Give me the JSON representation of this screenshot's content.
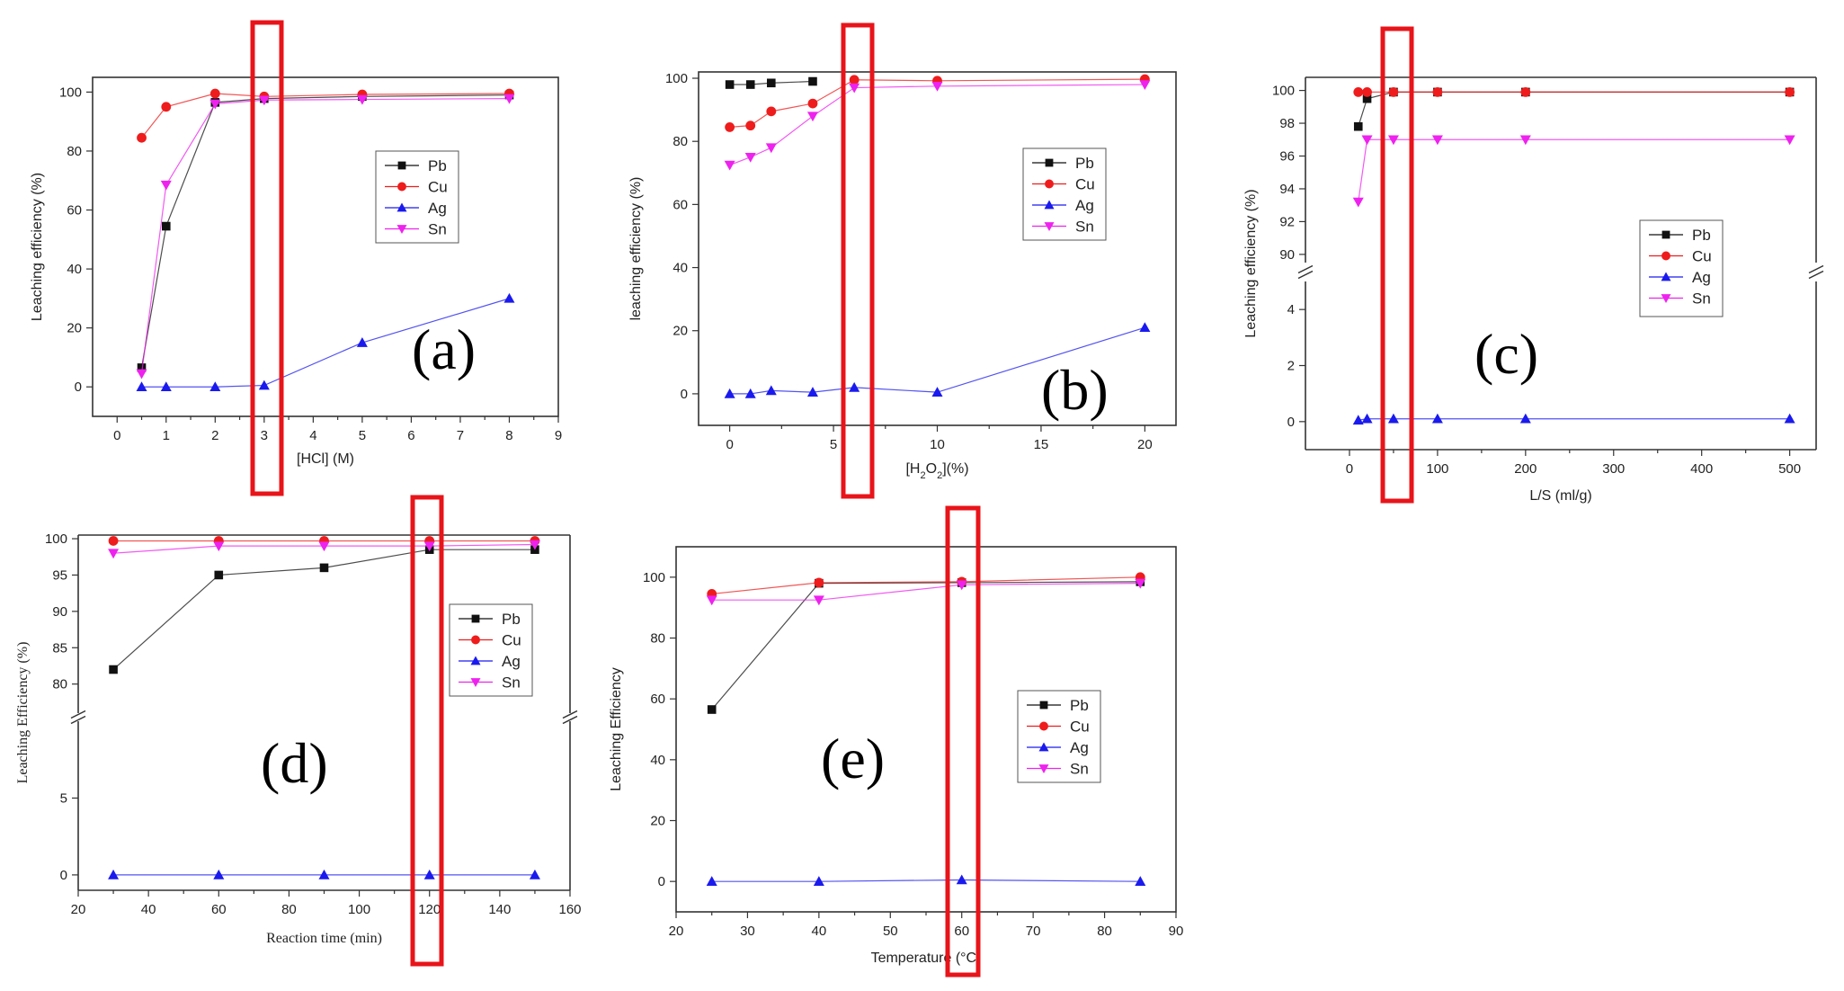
{
  "colors": {
    "Pb": "#111111",
    "Cu": "#ee1c1c",
    "Ag": "#1a1aee",
    "Sn": "#ee22ee",
    "highlight": "#e8141a"
  },
  "chart_data": [
    {
      "id": "a",
      "type": "line",
      "panel_label": "(a)",
      "xlabel": "[HCl] (M)",
      "ylabel": "Leaching efficiency (%)",
      "xlim": [
        -0.5,
        9
      ],
      "ylim": [
        -10,
        105
      ],
      "xticks": [
        0,
        1,
        2,
        3,
        4,
        5,
        6,
        7,
        8,
        9
      ],
      "yticks": [
        0,
        20,
        40,
        60,
        80,
        100
      ],
      "legend": [
        "Pb",
        "Cu",
        "Ag",
        "Sn"
      ],
      "highlight_x": 3,
      "series": [
        {
          "name": "Pb",
          "x": [
            0.5,
            1,
            2,
            3,
            5,
            8
          ],
          "values": [
            6.5,
            54.5,
            96.5,
            97.8,
            98.5,
            99
          ]
        },
        {
          "name": "Cu",
          "x": [
            0.5,
            1,
            2,
            3,
            5,
            8
          ],
          "values": [
            84.5,
            95,
            99.5,
            98.5,
            99.2,
            99.5
          ]
        },
        {
          "name": "Ag",
          "x": [
            0.5,
            1,
            2,
            3,
            5,
            8
          ],
          "values": [
            0,
            0,
            0,
            0.5,
            15,
            30
          ]
        },
        {
          "name": "Sn",
          "x": [
            0.5,
            1,
            2,
            3,
            5,
            8
          ],
          "values": [
            4.5,
            68.5,
            96,
            97.3,
            97.5,
            97.8
          ]
        }
      ]
    },
    {
      "id": "b",
      "type": "line",
      "panel_label": "(b)",
      "xlabel": "[H2O2](%)",
      "xlabel_parts": [
        "[H",
        "2",
        "O",
        "2",
        "](%)"
      ],
      "ylabel": "leaching efficiency (%)",
      "xlim": [
        -1.5,
        21.5
      ],
      "ylim": [
        -10,
        102
      ],
      "xticks": [
        0,
        5,
        10,
        15,
        20
      ],
      "yticks": [
        0,
        20,
        40,
        60,
        80,
        100
      ],
      "legend": [
        "Pb",
        "Cu",
        "Ag",
        "Sn"
      ],
      "highlight_x": 6,
      "series": [
        {
          "name": "Pb",
          "x": [
            0,
            1,
            2,
            4
          ],
          "values": [
            98,
            98,
            98.5,
            99
          ]
        },
        {
          "name": "Cu",
          "x": [
            0,
            1,
            2,
            4,
            6,
            10,
            20
          ],
          "values": [
            84.5,
            85,
            89.5,
            92,
            99.5,
            99.2,
            99.7
          ]
        },
        {
          "name": "Ag",
          "x": [
            0,
            1,
            2,
            4,
            6,
            10,
            20
          ],
          "values": [
            0,
            0,
            1,
            0.5,
            2,
            0.5,
            21
          ]
        },
        {
          "name": "Sn",
          "x": [
            0,
            1,
            2,
            4,
            6,
            10,
            20
          ],
          "values": [
            72.5,
            75,
            78,
            88,
            97,
            97.5,
            98
          ]
        }
      ]
    },
    {
      "id": "c",
      "type": "line",
      "panel_label": "(c)",
      "xlabel": "L/S (ml/g)",
      "ylabel": "Leaching efficiency (%)",
      "xlim": [
        -50,
        530
      ],
      "xticks": [
        0,
        100,
        200,
        300,
        400,
        500
      ],
      "y_broken": true,
      "ylim_lower": [
        -1,
        5
      ],
      "yticks_lower": [
        0,
        2,
        4
      ],
      "ylim_upper": [
        89.5,
        100.8
      ],
      "yticks_upper": [
        90,
        92,
        94,
        96,
        98,
        100
      ],
      "legend": [
        "Pb",
        "Cu",
        "Ag",
        "Sn"
      ],
      "highlight_x": 50,
      "series": [
        {
          "name": "Pb",
          "x": [
            10,
            20,
            50,
            100,
            200,
            500
          ],
          "values": [
            97.8,
            99.5,
            99.9,
            99.9,
            99.9,
            99.9
          ]
        },
        {
          "name": "Cu",
          "x": [
            10,
            20,
            50,
            100,
            200,
            500
          ],
          "values": [
            99.9,
            99.9,
            99.9,
            99.9,
            99.9,
            99.9
          ]
        },
        {
          "name": "Ag",
          "x": [
            10,
            20,
            50,
            100,
            200,
            500
          ],
          "values": [
            0.05,
            0.1,
            0.1,
            0.1,
            0.1,
            0.1
          ]
        },
        {
          "name": "Sn",
          "x": [
            10,
            20,
            50,
            100,
            200,
            500
          ],
          "values": [
            93.2,
            97,
            97,
            97,
            97,
            97
          ]
        }
      ]
    },
    {
      "id": "d",
      "type": "line",
      "panel_label": "(d)",
      "xlabel": "Reaction time (min)",
      "ylabel": "Leaching Efficiency (%)",
      "xlim": [
        20,
        160
      ],
      "xticks": [
        20,
        40,
        60,
        80,
        100,
        120,
        140,
        160
      ],
      "y_broken": true,
      "ylim_lower": [
        -1,
        10
      ],
      "yticks_lower": [
        0,
        5
      ],
      "ylim_upper": [
        76,
        100.5
      ],
      "yticks_upper": [
        80,
        85,
        90,
        95,
        100
      ],
      "legend": [
        "Pb",
        "Cu",
        "Ag",
        "Sn"
      ],
      "highlight_x": 120,
      "series": [
        {
          "name": "Pb",
          "x": [
            30,
            60,
            90,
            120,
            150
          ],
          "values": [
            82,
            95,
            96,
            98.5,
            98.5
          ]
        },
        {
          "name": "Cu",
          "x": [
            30,
            60,
            90,
            120,
            150
          ],
          "values": [
            99.7,
            99.7,
            99.7,
            99.7,
            99.7
          ]
        },
        {
          "name": "Ag",
          "x": [
            30,
            60,
            90,
            120,
            150
          ],
          "values": [
            0,
            0,
            0,
            0,
            0
          ]
        },
        {
          "name": "Sn",
          "x": [
            30,
            60,
            90,
            120,
            150
          ],
          "values": [
            98,
            99,
            99,
            99,
            99.2
          ]
        }
      ]
    },
    {
      "id": "e",
      "type": "line",
      "panel_label": "(e)",
      "xlabel": "Temperature (°C)",
      "ylabel": "Leaching Efficiency",
      "xlim": [
        20,
        90
      ],
      "ylim": [
        -10,
        110
      ],
      "xticks": [
        20,
        30,
        40,
        50,
        60,
        70,
        80,
        90
      ],
      "yticks": [
        0,
        20,
        40,
        60,
        80,
        100
      ],
      "legend": [
        "Pb",
        "Cu",
        "Ag",
        "Sn"
      ],
      "highlight_x": 60,
      "series": [
        {
          "name": "Pb",
          "x": [
            25,
            40,
            60,
            85
          ],
          "values": [
            56.5,
            98,
            98.2,
            98.5
          ]
        },
        {
          "name": "Cu",
          "x": [
            25,
            40,
            60,
            85
          ],
          "values": [
            94.5,
            98.2,
            98.5,
            100
          ]
        },
        {
          "name": "Ag",
          "x": [
            25,
            40,
            60,
            85
          ],
          "values": [
            0,
            0,
            0.5,
            0
          ]
        },
        {
          "name": "Sn",
          "x": [
            25,
            40,
            60,
            85
          ],
          "values": [
            92.5,
            92.5,
            97.5,
            98
          ]
        }
      ]
    }
  ]
}
